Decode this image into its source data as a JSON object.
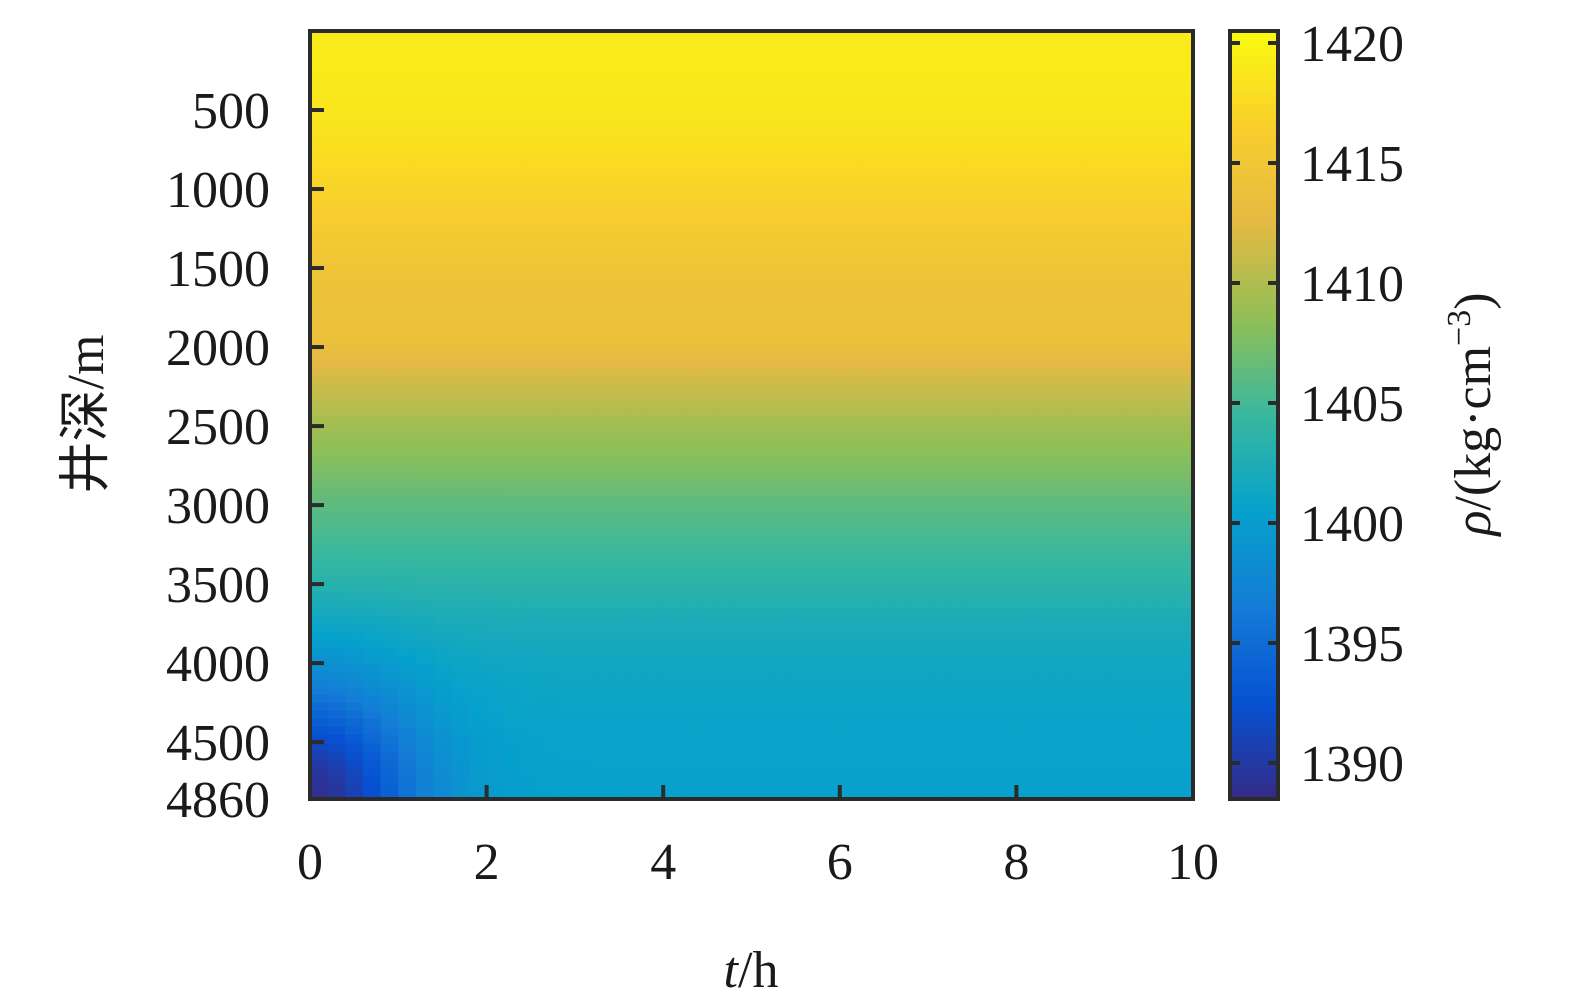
{
  "chart_data": {
    "type": "heatmap",
    "title": "",
    "xlabel": {
      "italic": "t",
      "rest": "/h"
    },
    "ylabel": "井深/m",
    "colorbar_label": {
      "italic": "ρ",
      "rest": "/(kg·cm",
      "sup": "−3",
      "close": ")"
    },
    "x": {
      "range": [
        0,
        10
      ],
      "ticks": [
        0,
        2,
        4,
        6,
        8,
        10
      ]
    },
    "y": {
      "range": [
        0,
        4860
      ],
      "reversed": true,
      "ticks": [
        500,
        1000,
        1500,
        2000,
        2500,
        3000,
        3500,
        4000,
        4500,
        4860
      ]
    },
    "color_range": [
      1388.5,
      1420.5
    ],
    "colorbar_ticks": [
      1390,
      1395,
      1400,
      1405,
      1410,
      1415,
      1420
    ],
    "colormap": "parula",
    "density_profile_depth": [
      0,
      250,
      500,
      750,
      1000,
      1250,
      1500,
      1750,
      1900,
      2000,
      2250,
      2500,
      2750,
      3000,
      3250,
      3500,
      3750,
      4000,
      4250,
      4500,
      4860
    ],
    "density_profile_values": [
      1419.0,
      1419.0,
      1418.6,
      1418.0,
      1417.0,
      1415.8,
      1414.6,
      1414.0,
      1414.2,
      1413.5,
      1411.2,
      1409.3,
      1407.8,
      1406.2,
      1404.9,
      1403.5,
      1402.2,
      1401.4,
      1401.0,
      1400.7,
      1400.5
    ],
    "early_time_anomaly": {
      "t_center": 0,
      "depth_center": 4860,
      "min_value": 1389.0,
      "time_scale_h": 1.2,
      "depth_scale_m": 700
    },
    "grid": false
  }
}
